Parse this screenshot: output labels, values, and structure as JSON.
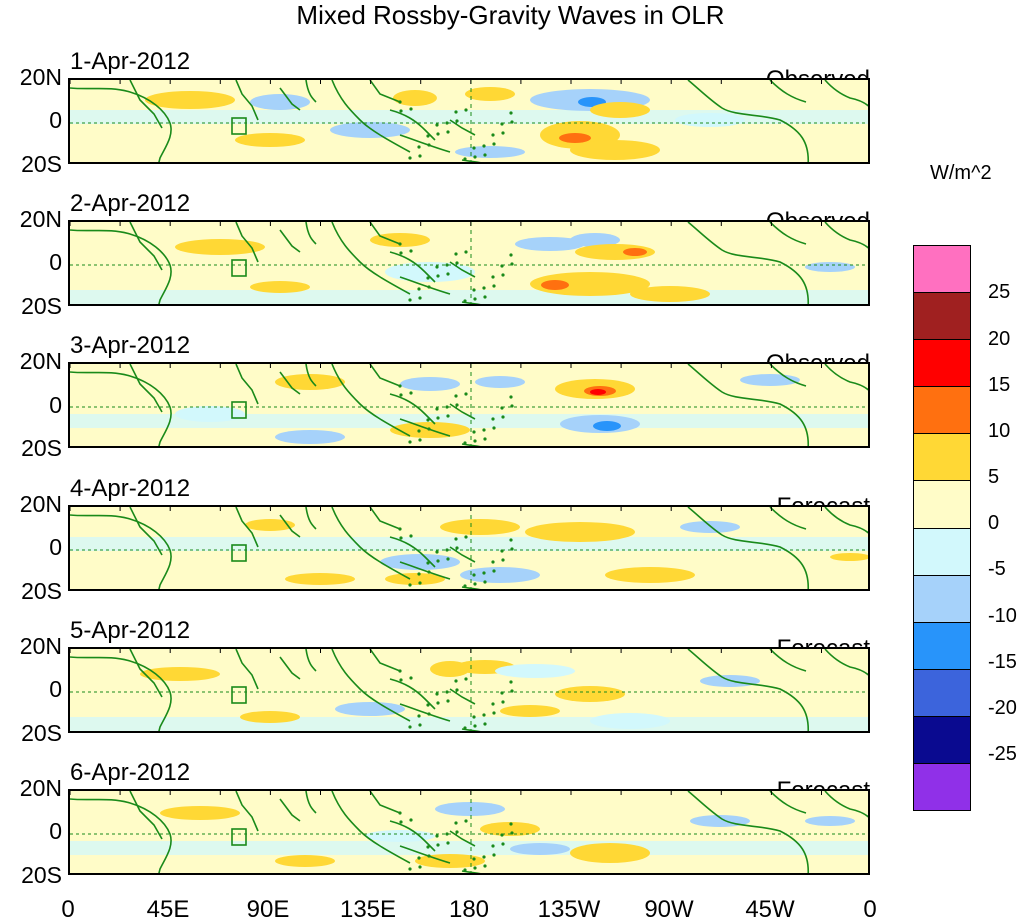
{
  "figure": {
    "title": "Mixed Rossby-Gravity Waves in OLR"
  },
  "panels": [
    {
      "date": "1-Apr-2012",
      "kind": "Observed"
    },
    {
      "date": "2-Apr-2012",
      "kind": "Observed"
    },
    {
      "date": "3-Apr-2012",
      "kind": "Observed"
    },
    {
      "date": "4-Apr-2012",
      "kind": "Forecast"
    },
    {
      "date": "5-Apr-2012",
      "kind": "Forecast"
    },
    {
      "date": "6-Apr-2012",
      "kind": "Forecast"
    }
  ],
  "y_ticks": [
    "20N",
    "0",
    "20S"
  ],
  "x_ticks": [
    "0",
    "45E",
    "90E",
    "135E",
    "180",
    "135W",
    "90W",
    "45W",
    "0"
  ],
  "colorbar": {
    "units": "W/m^2",
    "labels": [
      "25",
      "20",
      "15",
      "10",
      "5",
      "0",
      "-5",
      "-10",
      "-15",
      "-20",
      "-25"
    ],
    "colors": [
      "#ff70c0",
      "#a02020",
      "#ff0000",
      "#ff7010",
      "#ffd835",
      "#fffcc8",
      "#d2f8fc",
      "#a6d2fa",
      "#2894fa",
      "#3c64dc",
      "#0a0a90",
      "#9030e8"
    ]
  },
  "chart_data": {
    "type": "map-contour",
    "variable": "OLR anomaly (Mixed Rossby-Gravity Waves)",
    "units": "W/m^2",
    "lon_range": [
      0,
      360
    ],
    "lat_range": [
      -20,
      20
    ],
    "levels": [
      -25,
      -20,
      -15,
      -10,
      -5,
      0,
      5,
      10,
      15,
      20,
      25
    ],
    "dates": [
      "1-Apr-2012",
      "2-Apr-2012",
      "3-Apr-2012",
      "4-Apr-2012",
      "5-Apr-2012",
      "6-Apr-2012"
    ],
    "types": [
      "Observed",
      "Observed",
      "Observed",
      "Forecast",
      "Forecast",
      "Forecast"
    ]
  }
}
